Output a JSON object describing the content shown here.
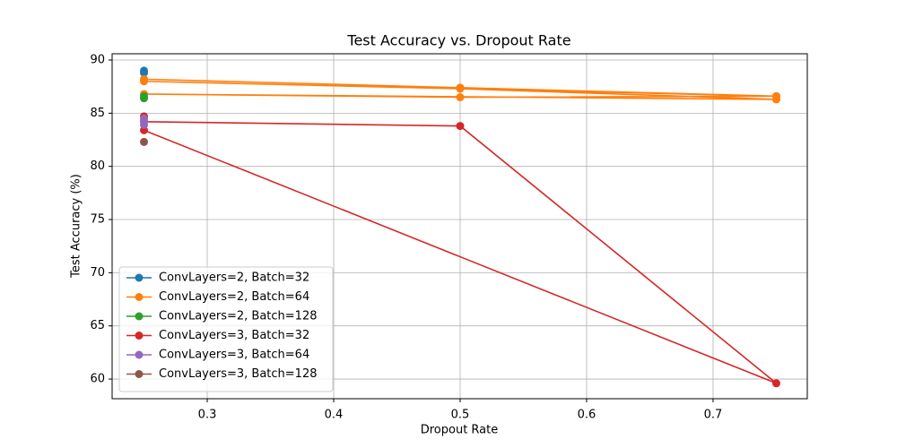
{
  "chart_data": {
    "type": "line",
    "title": "Test Accuracy vs. Dropout Rate",
    "x_label": "Dropout Rate",
    "y_label": "Test Accuracy (%)",
    "xlim": [
      0.2248,
      0.7745
    ],
    "xticks": [
      0.3,
      0.4,
      0.5,
      0.6,
      0.7
    ],
    "ylim": [
      58.15,
      90.59
    ],
    "yticks": [
      60,
      65,
      70,
      75,
      80,
      85,
      90
    ],
    "grid": true,
    "legend_position": "lower left",
    "series": [
      {
        "name": "ConvLayers=2, Batch=32",
        "color": "#1f77b4",
        "x": [
          0.25,
          0.25
        ],
        "values": [
          89.0,
          88.8
        ]
      },
      {
        "name": "ConvLayers=2, Batch=64",
        "color": "#ff7f0e",
        "x": [
          0.25,
          0.5,
          0.75,
          0.25,
          0.5,
          0.75,
          0.25,
          0.5,
          0.75
        ],
        "values": [
          88.2,
          87.4,
          86.6,
          88.0,
          87.3,
          86.3,
          86.8,
          86.5,
          86.6
        ]
      },
      {
        "name": "ConvLayers=2, Batch=128",
        "color": "#2ca02c",
        "x": [
          0.25,
          0.25
        ],
        "values": [
          86.6,
          86.4
        ]
      },
      {
        "name": "ConvLayers=3, Batch=32",
        "color": "#d62728",
        "x": [
          0.25,
          0.25,
          0.5,
          0.75,
          0.25
        ],
        "values": [
          84.7,
          84.2,
          83.8,
          59.6,
          83.4
        ]
      },
      {
        "name": "ConvLayers=3, Batch=64",
        "color": "#9467bd",
        "x": [
          0.25,
          0.25,
          0.25
        ],
        "values": [
          84.5,
          84.2,
          83.9
        ]
      },
      {
        "name": "ConvLayers=3, Batch=128",
        "color": "#8c564b",
        "x": [
          0.25
        ],
        "values": [
          82.3
        ]
      }
    ]
  }
}
